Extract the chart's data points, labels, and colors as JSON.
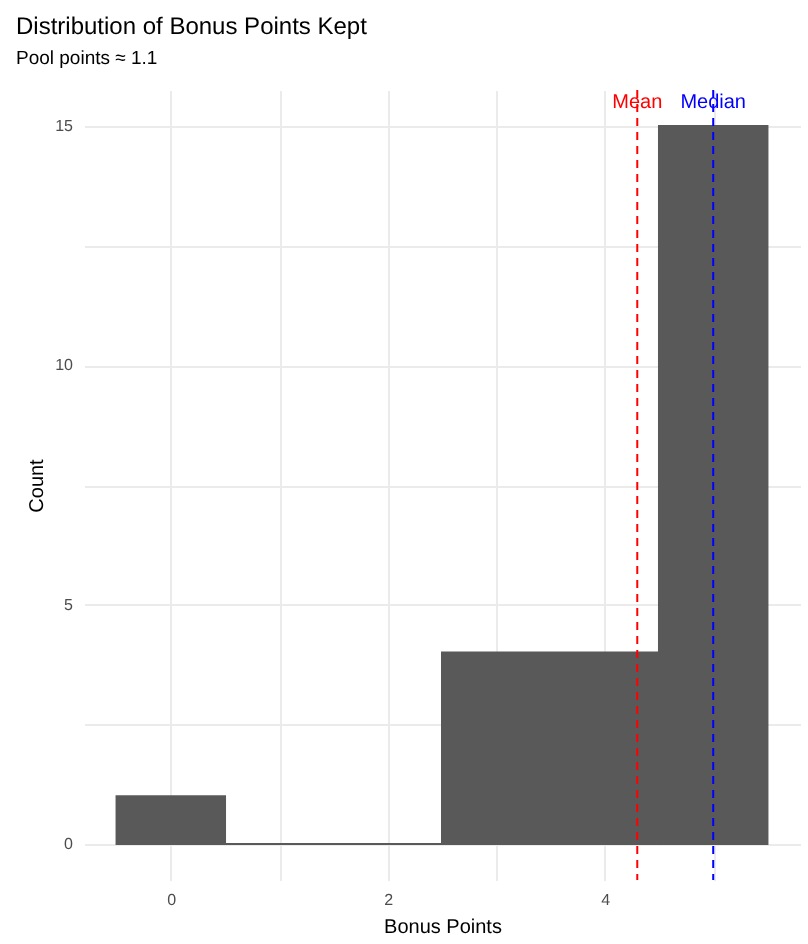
{
  "chart_data": {
    "type": "histogram",
    "title": "Distribution of Bonus Points Kept",
    "subtitle": "Pool points ≈ 1.1",
    "xlabel": "Bonus Points",
    "ylabel": "Count",
    "bins": [
      -0.5,
      0.5,
      2.5,
      4.5,
      5.5
    ],
    "values": [
      1,
      0,
      4,
      15
    ],
    "color": "#595959",
    "xlim": [
      -0.8,
      5.8
    ],
    "xticks": [
      0,
      {
        "value": 1,
        "label": null
      },
      2,
      {
        "value": 3,
        "label": null
      },
      4,
      {
        "value": 5,
        "label": null
      }
    ],
    "ylim": [
      -0.75,
      15.75
    ],
    "yticks": [
      0,
      {
        "value": 2.5,
        "label": null
      },
      5,
      {
        "value": 7.5,
        "label": null
      },
      10,
      {
        "value": 12.5,
        "label": null
      },
      15
    ],
    "grid": true,
    "ref_lines": [
      {
        "axis": "x",
        "value": 4.3,
        "label": "Mean",
        "color": "#ff0000",
        "line_style": "dashed"
      },
      {
        "axis": "x",
        "value": 5,
        "label": "Median",
        "color": "#0000ff",
        "line_style": "dashed"
      }
    ]
  }
}
